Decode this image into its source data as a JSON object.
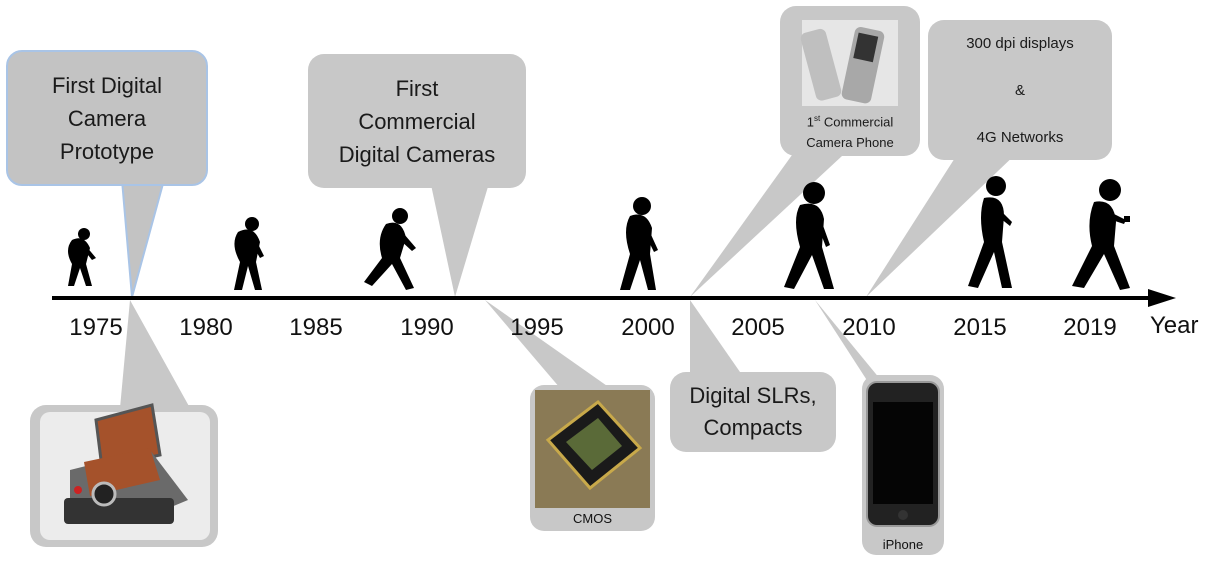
{
  "axis": {
    "label": "Year",
    "years": [
      "1975",
      "1980",
      "1985",
      "1990",
      "1995",
      "2000",
      "2005",
      "2010",
      "2015",
      "2019"
    ]
  },
  "callouts": {
    "first_prototype": [
      "First Digital",
      "Camera",
      "Prototype"
    ],
    "first_commercial": [
      "First",
      "Commercial",
      "Digital Cameras"
    ],
    "dslr": [
      "Digital SLRs,",
      "Compacts"
    ],
    "camera_phone": {
      "line1_prefix": "1",
      "line1_sup": "st",
      "line1_rest": " Commercial",
      "line2": "Camera Phone"
    },
    "displays": [
      "300 dpi displays",
      "&",
      "4G Networks"
    ]
  },
  "photos": {
    "cmos_caption": "CMOS",
    "iphone_caption": "iPhone"
  },
  "colors": {
    "callout_fill": "#c8c8c8",
    "prototype_border": "#a9c4e6",
    "axis": "#000000",
    "silhouette": "#000000"
  },
  "icons": [
    "human-evolution-silhouette-icon",
    "polaroid-camera-icon",
    "cmos-sensor-icon",
    "flip-phone-icon",
    "iphone-icon"
  ]
}
